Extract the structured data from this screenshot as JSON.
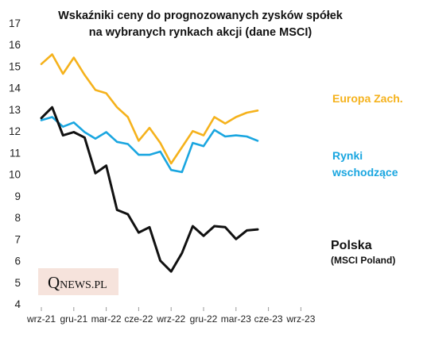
{
  "chart_data": {
    "type": "line",
    "title": [
      "Wskaźniki ceny do prognozowanych  zysków spółek",
      "na wybranych rynkach akcji (dane MSCI)"
    ],
    "xlabel": "",
    "ylabel": "",
    "ylim": [
      4,
      17
    ],
    "yticks": [
      4,
      5,
      6,
      7,
      8,
      9,
      10,
      11,
      12,
      13,
      14,
      15,
      16,
      17
    ],
    "xtick_labels": [
      "wrz-21",
      "gru-21",
      "mar-22",
      "cze-22",
      "wrz-22",
      "gru-22",
      "mar-23",
      "cze-23",
      "wrz-23"
    ],
    "x": [
      "wrz-21",
      "paź-21",
      "lis-21",
      "gru-21",
      "sty-22",
      "lut-22",
      "mar-22",
      "kwi-22",
      "maj-22",
      "cze-22",
      "lip-22",
      "sie-22",
      "wrz-22",
      "paź-22",
      "lis-22",
      "gru-22",
      "sty-23",
      "lut-23",
      "mar-23",
      "kwi-23",
      "maj-23",
      "cze-23",
      "lip-23",
      "sie-23",
      "wrz-23"
    ],
    "grid": false,
    "series": [
      {
        "name": "Europa Zach.",
        "color": "#f5b21c",
        "values": [
          15.1,
          15.55,
          14.65,
          15.4,
          14.6,
          13.9,
          13.75,
          13.1,
          12.65,
          11.55,
          12.15,
          11.45,
          10.5,
          11.25,
          12.0,
          11.8,
          12.65,
          12.35,
          12.65,
          12.85,
          12.95,
          null,
          null,
          null,
          null
        ]
      },
      {
        "name": "Rynki wschodzące",
        "color": "#1aa6e0",
        "values": [
          12.5,
          12.65,
          12.2,
          12.4,
          11.95,
          11.65,
          11.95,
          11.5,
          11.4,
          10.9,
          10.9,
          11.05,
          10.2,
          10.1,
          11.45,
          11.3,
          12.05,
          11.75,
          11.8,
          11.75,
          11.55,
          null,
          null,
          null,
          null
        ]
      },
      {
        "name": "Polska",
        "color": "#111111",
        "values": [
          12.6,
          13.1,
          11.8,
          11.95,
          11.7,
          10.05,
          10.4,
          8.35,
          8.15,
          7.3,
          7.55,
          6.0,
          5.5,
          6.35,
          7.6,
          7.15,
          7.6,
          7.55,
          7.0,
          7.4,
          7.45,
          null,
          null,
          null,
          null
        ]
      }
    ],
    "labels": {
      "europa": "Europa Zach.",
      "rynki_line1": "Rynki",
      "rynki_line2": "wschodzące",
      "polska_line1": "Polska",
      "polska_line2": "(MSCI Poland)"
    },
    "logo": {
      "q": "Q",
      "rest": "NEWS.PL"
    }
  }
}
